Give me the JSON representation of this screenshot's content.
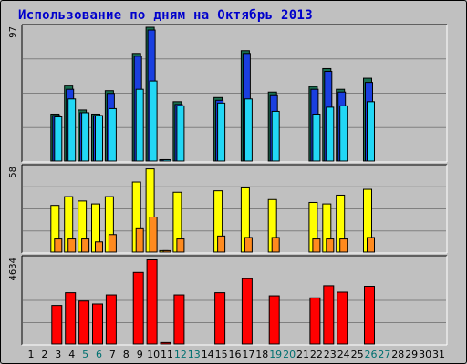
{
  "title": "Использование по дням на Октябрь 2013",
  "colors": {
    "background": "#c0c0c0",
    "title": "#0000cc",
    "weekday_label": "#000000",
    "weekend_label": "#007070",
    "gridline": "#808080",
    "hits_outer": "#1a6e50",
    "hits_inner": "#1a3fe0",
    "files": "#22d7f5",
    "pages": "#ffff00",
    "visits": "#ff8a1e",
    "traffic": "#ff0000"
  },
  "chart_data": {
    "type": "bar",
    "categories": [
      "1",
      "2",
      "3",
      "4",
      "5",
      "6",
      "7",
      "8",
      "9",
      "10",
      "11",
      "12",
      "13",
      "14",
      "15",
      "16",
      "17",
      "18",
      "19",
      "20",
      "21",
      "22",
      "23",
      "24",
      "25",
      "26",
      "27",
      "28",
      "29",
      "30",
      "31"
    ],
    "weekend_days": [
      "5",
      "6",
      "12",
      "13",
      "19",
      "20",
      "26",
      "27"
    ],
    "panels": [
      {
        "name": "hits-files",
        "ymax_label": "97",
        "ylim": [
          0,
          97
        ],
        "series": [
          {
            "key": "hits_outer",
            "values": [
              0,
              0,
              34,
              55,
              37,
              34,
              51,
              0,
              78,
              97,
              1,
              43,
              0,
              0,
              46,
              0,
              80,
              0,
              50,
              0,
              0,
              54,
              67,
              52,
              0,
              60,
              0,
              0,
              0,
              0,
              0
            ]
          },
          {
            "key": "hits_inner",
            "values": [
              0,
              0,
              33,
              52,
              35,
              33,
              49,
              0,
              76,
              95,
              1,
              41,
              0,
              0,
              44,
              0,
              78,
              0,
              48,
              0,
              0,
              52,
              65,
              50,
              0,
              57,
              0,
              0,
              0,
              0,
              0
            ]
          },
          {
            "key": "files",
            "values": [
              0,
              0,
              32,
              45,
              35,
              33,
              38,
              0,
              52,
              58,
              1,
              40,
              0,
              0,
              42,
              0,
              45,
              0,
              36,
              0,
              0,
              34,
              39,
              40,
              0,
              43,
              0,
              0,
              0,
              0,
              0
            ]
          }
        ]
      },
      {
        "name": "pages-visits",
        "ymax_label": "58",
        "ylim": [
          0,
          58
        ],
        "series": [
          {
            "key": "pages",
            "values": [
              0,
              0,
              32,
              38,
              35,
              33,
              38,
              0,
              48,
              57,
              1,
              41,
              0,
              0,
              42,
              0,
              44,
              0,
              36,
              0,
              0,
              34,
              33,
              39,
              0,
              43,
              0,
              0,
              0,
              0,
              0
            ]
          },
          {
            "key": "visits",
            "values": [
              0,
              0,
              9,
              9,
              9,
              7,
              12,
              0,
              16,
              24,
              1,
              9,
              0,
              0,
              11,
              0,
              10,
              0,
              10,
              0,
              0,
              9,
              9,
              9,
              0,
              10,
              0,
              0,
              0,
              0,
              0
            ]
          }
        ]
      },
      {
        "name": "traffic",
        "ymax_label": "4634",
        "ylim": [
          0,
          4634
        ],
        "series": [
          {
            "key": "traffic",
            "values": [
              0,
              0,
              2090,
              2780,
              2330,
              2170,
              2660,
              0,
              3880,
              4560,
              80,
              2660,
              0,
              0,
              2780,
              0,
              3540,
              0,
              2610,
              0,
              0,
              2500,
              3160,
              2810,
              0,
              3130,
              0,
              0,
              0,
              0,
              0
            ]
          }
        ]
      }
    ]
  }
}
